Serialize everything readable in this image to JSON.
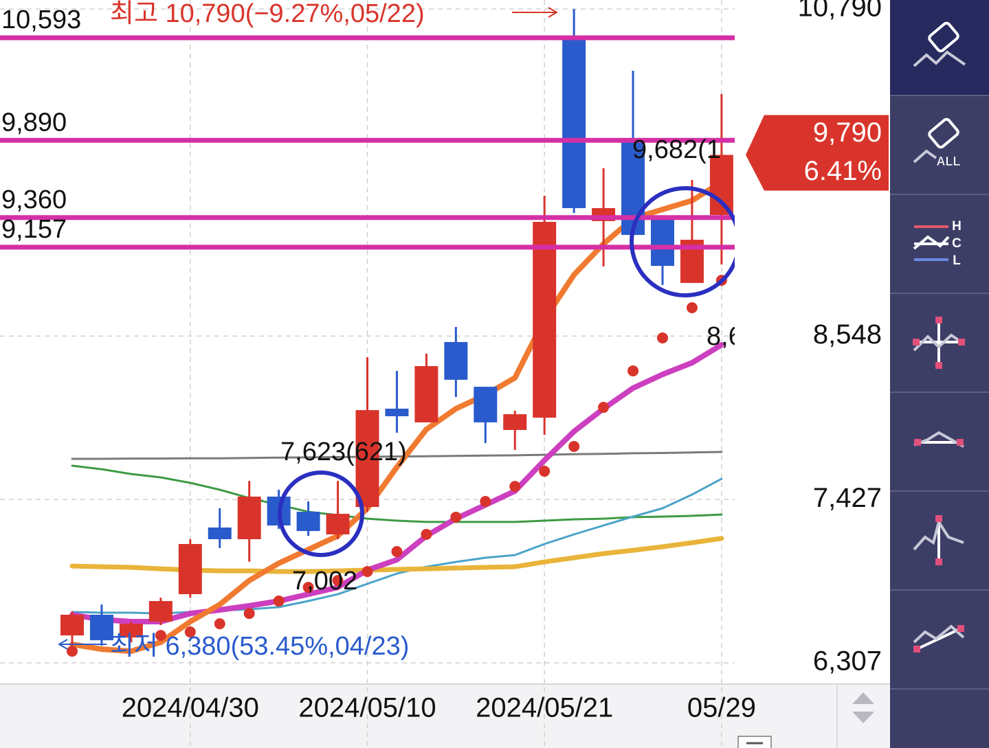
{
  "chart_data": {
    "type": "candlestick",
    "categories": [
      null,
      null,
      null,
      null,
      "2024/04/30",
      null,
      null,
      null,
      null,
      null,
      "2024/05/10",
      null,
      null,
      null,
      null,
      null,
      "2024/05/21",
      null,
      null,
      null,
      null,
      null,
      "05/29"
    ],
    "candles": {
      "open": [
        6495,
        6637,
        6481,
        6590,
        6778,
        7235,
        7155,
        7447,
        7343,
        7188,
        7376,
        8050,
        7956,
        8507,
        8200,
        7904,
        7988,
        10584,
        9336,
        9887,
        9354,
        8912,
        9378
      ],
      "high": [
        6660,
        6707,
        6590,
        6754,
        7155,
        7367,
        7555,
        7494,
        7414,
        7555,
        8403,
        8309,
        8427,
        8610,
        8200,
        8036,
        9510,
        10790,
        9698,
        10367,
        9354,
        9618,
        10207
      ],
      "low": [
        6378,
        6425,
        6448,
        6566,
        6754,
        7094,
        7001,
        7225,
        7178,
        7155,
        7343,
        7885,
        7956,
        8130,
        7814,
        7767,
        7871,
        9392,
        9025,
        9241,
        8898,
        8912,
        9039
      ],
      "close": [
        6637,
        6462,
        6575,
        6731,
        7122,
        7155,
        7447,
        7249,
        7211,
        7329,
        8040,
        7998,
        8342,
        8248,
        7956,
        8012,
        9331,
        9425,
        9425,
        9241,
        9029,
        9208,
        9790
      ],
      "up_color": "#d9342b",
      "down_color": "#2a5bcc"
    },
    "series": [
      {
        "color": "#7a7a7a",
        "values": [
          7706,
          7706,
          7708,
          7708,
          7710,
          7710,
          7712,
          7714,
          7716,
          7718,
          7720,
          7722,
          7724,
          7726,
          7728,
          7730,
          7734,
          7738,
          7740,
          7744,
          7746,
          7750,
          7753
        ]
      },
      {
        "color": "#3f9a45",
        "values": [
          7659,
          7635,
          7602,
          7579,
          7541,
          7494,
          7437,
          7390,
          7343,
          7320,
          7296,
          7282,
          7273,
          7273,
          7273,
          7273,
          7282,
          7291,
          7296,
          7306,
          7310,
          7315,
          7324
        ]
      },
      {
        "color": "#4aa3c8",
        "values": [
          6656,
          6651,
          6651,
          6646,
          6656,
          6665,
          6674,
          6689,
          6731,
          6778,
          6849,
          6919,
          6966,
          6999,
          7028,
          7046,
          7122,
          7188,
          7249,
          7310,
          7367,
          7461,
          7569
        ]
      },
      {
        "color": "#e8b43a",
        "values": [
          6971,
          6966,
          6962,
          6952,
          6943,
          6938,
          6938,
          6933,
          6933,
          6938,
          6943,
          6948,
          6952,
          6957,
          6962,
          6966,
          6999,
          7028,
          7056,
          7079,
          7103,
          7131,
          7160
        ]
      },
      {
        "color": "#cc3fbf",
        "values": [
          6637,
          6604,
          6590,
          6590,
          6646,
          6670,
          6698,
          6731,
          6778,
          6825,
          6943,
          7014,
          7178,
          7296,
          7390,
          7485,
          7696,
          7894,
          8050,
          8191,
          8285,
          8365,
          8488
        ]
      },
      {
        "color": "#f07a30",
        "values": [
          6434,
          6401,
          6387,
          6448,
          6590,
          6707,
          6872,
          6990,
          7084,
          7178,
          7367,
          7649,
          7908,
          8050,
          8144,
          8262,
          8662,
          8968,
          9180,
          9354,
          9416,
          9477,
          9604
        ]
      }
    ],
    "dots": {
      "color": "#d9342b",
      "values": [
        6387,
        null,
        null,
        6495,
        6519,
        6575,
        6646,
        6731,
        6825,
        6872,
        6933,
        7070,
        7188,
        7306,
        7414,
        7517,
        7621,
        7791,
        8059,
        8309,
        8535,
        8742,
        8930
      ]
    },
    "hlines": [
      {
        "value": 10593,
        "label": "10,593"
      },
      {
        "value": 9890,
        "label": "9,890"
      },
      {
        "value": 9360,
        "label": "9,360"
      },
      {
        "value": 9157,
        "label": "9,157"
      }
    ],
    "hline_color": "#d52fa6",
    "ylim": [
      6166,
      10852
    ],
    "yticks": [
      {
        "value": 10790,
        "label": "10,790"
      },
      {
        "value": 8548,
        "label": "8,548"
      },
      {
        "value": 7427,
        "label": "7,427"
      },
      {
        "value": 6307,
        "label": "6,307"
      }
    ],
    "grid": true,
    "current": {
      "value": 9790,
      "label": "9,790",
      "change": 6.41,
      "change_label": "6.41%",
      "color": "#d9342b"
    },
    "annotations": [
      "최고 10,790(−9.27%,05/22)",
      "최저 6,380(53.45%,04/23)",
      "7,623(621)",
      "7,002",
      "9,682(1",
      "8,6"
    ]
  },
  "toolbar": {
    "labels": [
      "ALL",
      "H",
      "C",
      "L"
    ]
  }
}
